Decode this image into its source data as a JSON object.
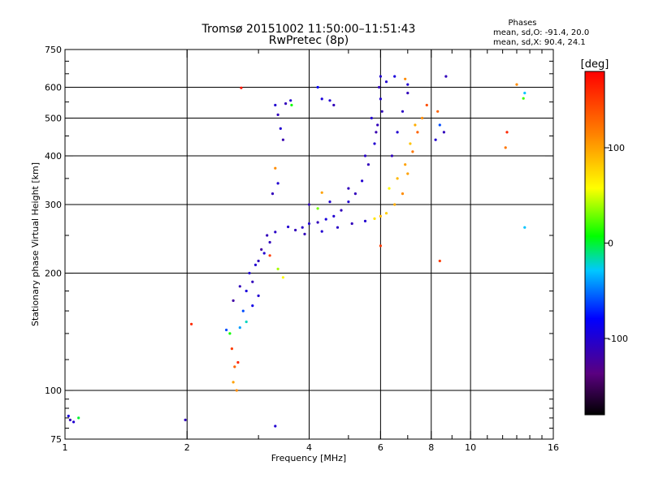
{
  "chart_data": {
    "type": "scatter",
    "title": "Tromsø 20151002 11:50:00–11:51:43",
    "subtitle": "RwPretec (8p)",
    "xlabel": "Frequency [MHz]",
    "ylabel": "Stationary phase Virtual Height [km]",
    "x_scale": "log",
    "y_scale": "log",
    "xlim": [
      1,
      16
    ],
    "ylim": [
      75,
      750
    ],
    "x_ticks": [
      1,
      2,
      4,
      6,
      8,
      10,
      16
    ],
    "y_ticks": [
      75,
      100,
      200,
      300,
      400,
      500,
      600,
      750
    ],
    "grid": true,
    "phase_legend": {
      "title": "Phases",
      "line_o": "mean, sd,O: -91.4, 20.0",
      "line_x": "mean, sd,X:  90.4, 24.1"
    },
    "colorbar": {
      "label": "[deg]",
      "range": [
        -180,
        180
      ],
      "ticks": [
        -100,
        0,
        100
      ]
    },
    "series": [
      {
        "points": [
          [
            1.03,
            84,
            -110
          ],
          [
            1.05,
            83,
            -100
          ],
          [
            1.08,
            85,
            0
          ],
          [
            1.02,
            86,
            -95
          ],
          [
            1.98,
            84,
            -110
          ],
          [
            2.05,
            148,
            160
          ],
          [
            3.3,
            81,
            -100
          ],
          [
            2.72,
            598,
            170
          ],
          [
            2.5,
            143,
            -60
          ],
          [
            2.55,
            140,
            10
          ],
          [
            2.6,
            105,
            100
          ],
          [
            2.62,
            115,
            130
          ],
          [
            2.58,
            128,
            150
          ],
          [
            2.65,
            100,
            110
          ],
          [
            2.67,
            118,
            160
          ],
          [
            2.7,
            145,
            -40
          ],
          [
            2.8,
            150,
            -20
          ],
          [
            2.75,
            160,
            -60
          ],
          [
            2.9,
            165,
            -90
          ],
          [
            3.0,
            175,
            -100
          ],
          [
            2.6,
            170,
            -120
          ],
          [
            2.7,
            185,
            -110
          ],
          [
            2.85,
            200,
            -100
          ],
          [
            3.0,
            215,
            -110
          ],
          [
            3.1,
            225,
            -100
          ],
          [
            3.2,
            240,
            -110
          ],
          [
            3.3,
            255,
            -105
          ],
          [
            3.15,
            250,
            -110
          ],
          [
            3.05,
            230,
            -120
          ],
          [
            2.95,
            210,
            -100
          ],
          [
            2.9,
            190,
            -110
          ],
          [
            2.8,
            180,
            -95
          ],
          [
            3.35,
            205,
            40
          ],
          [
            3.45,
            195,
            60
          ],
          [
            3.2,
            222,
            150
          ],
          [
            3.3,
            540,
            -100
          ],
          [
            3.35,
            510,
            -110
          ],
          [
            3.4,
            470,
            -100
          ],
          [
            3.45,
            440,
            -115
          ],
          [
            3.5,
            545,
            -110
          ],
          [
            3.6,
            555,
            -100
          ],
          [
            3.62,
            540,
            10
          ],
          [
            3.3,
            372,
            110
          ],
          [
            3.35,
            340,
            -100
          ],
          [
            3.25,
            320,
            -110
          ],
          [
            3.55,
            263,
            -100
          ],
          [
            3.7,
            258,
            -110
          ],
          [
            3.85,
            262,
            -105
          ],
          [
            4.0,
            268,
            -100
          ],
          [
            4.2,
            270,
            -110
          ],
          [
            4.4,
            275,
            -95
          ],
          [
            4.6,
            280,
            -100
          ],
          [
            4.8,
            290,
            -110
          ],
          [
            5.0,
            305,
            -100
          ],
          [
            5.2,
            320,
            -110
          ],
          [
            5.4,
            345,
            -100
          ],
          [
            5.6,
            380,
            -110
          ],
          [
            5.8,
            430,
            -100
          ],
          [
            5.9,
            480,
            -110
          ],
          [
            6.0,
            560,
            -100
          ],
          [
            5.95,
            600,
            -110
          ],
          [
            6.0,
            640,
            -100
          ],
          [
            6.05,
            520,
            -110
          ],
          [
            5.85,
            460,
            -115
          ],
          [
            4.2,
            293,
            30
          ],
          [
            4.3,
            322,
            100
          ],
          [
            4.6,
            540,
            -110
          ],
          [
            4.5,
            555,
            -100
          ],
          [
            4.3,
            560,
            -95
          ],
          [
            4.2,
            600,
            -80
          ],
          [
            4.0,
            300,
            -110
          ],
          [
            4.5,
            305,
            -100
          ],
          [
            5.0,
            330,
            -110
          ],
          [
            5.5,
            400,
            -105
          ],
          [
            5.7,
            500,
            -100
          ],
          [
            3.9,
            252,
            -110
          ],
          [
            4.3,
            256,
            -100
          ],
          [
            4.7,
            262,
            -105
          ],
          [
            5.1,
            268,
            -110
          ],
          [
            5.5,
            272,
            -100
          ],
          [
            5.8,
            276,
            70
          ],
          [
            6.0,
            280,
            90
          ],
          [
            6.2,
            285,
            80
          ],
          [
            6.5,
            300,
            95
          ],
          [
            6.8,
            320,
            110
          ],
          [
            7.0,
            360,
            100
          ],
          [
            7.2,
            410,
            120
          ],
          [
            7.4,
            460,
            130
          ],
          [
            7.6,
            500,
            110
          ],
          [
            7.8,
            540,
            140
          ],
          [
            6.3,
            330,
            60
          ],
          [
            6.6,
            350,
            90
          ],
          [
            6.9,
            380,
            100
          ],
          [
            7.1,
            430,
            85
          ],
          [
            7.3,
            480,
            95
          ],
          [
            6.4,
            400,
            -110
          ],
          [
            6.6,
            460,
            -100
          ],
          [
            6.8,
            520,
            -105
          ],
          [
            7.0,
            580,
            -110
          ],
          [
            6.2,
            620,
            -100
          ],
          [
            6.5,
            640,
            -95
          ],
          [
            6.9,
            630,
            110
          ],
          [
            7.0,
            610,
            -100
          ],
          [
            8.2,
            440,
            -100
          ],
          [
            8.4,
            480,
            -60
          ],
          [
            8.3,
            520,
            130
          ],
          [
            8.6,
            460,
            -110
          ],
          [
            8.7,
            640,
            -110
          ],
          [
            8.4,
            215,
            150
          ],
          [
            6.0,
            235,
            150
          ],
          [
            12.3,
            460,
            160
          ],
          [
            12.2,
            420,
            120
          ],
          [
            13.6,
            580,
            -30
          ],
          [
            13.5,
            562,
            20
          ],
          [
            13.6,
            262,
            -30
          ],
          [
            13.0,
            610,
            110
          ]
        ]
      }
    ]
  }
}
